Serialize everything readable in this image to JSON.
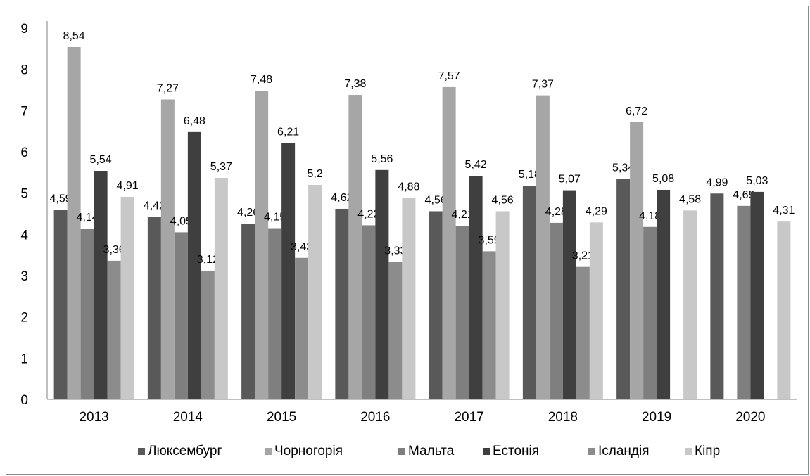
{
  "chart_data": {
    "type": "bar",
    "title": "",
    "xlabel": "",
    "ylabel": "",
    "ylim": [
      0,
      9
    ],
    "yticks": [
      0,
      1,
      2,
      3,
      4,
      5,
      6,
      7,
      8,
      9
    ],
    "grid": false,
    "legend_position": "bottom",
    "categories": [
      "2013",
      "2014",
      "2015",
      "2016",
      "2017",
      "2018",
      "2019",
      "2020"
    ],
    "series": [
      {
        "name": "Люксембург",
        "color": "#595959",
        "values": [
          4.59,
          4.42,
          4.26,
          4.62,
          4.56,
          5.18,
          5.34,
          null
        ],
        "labels": [
          "4,59",
          "4,42",
          "4,26",
          "4,62",
          "4,56",
          "5,18",
          "5,34",
          ""
        ]
      },
      {
        "name": "Чорногорія",
        "color": "#a6a6a6",
        "values": [
          8.54,
          7.27,
          7.48,
          7.38,
          7.57,
          7.37,
          6.72,
          null
        ],
        "labels": [
          "8,54",
          "7,27",
          "7,48",
          "7,38",
          "7,57",
          "7,37",
          "6,72",
          ""
        ]
      },
      {
        "name": "Мальта",
        "color": "#7f7f7f",
        "values": [
          4.14,
          4.05,
          4.15,
          4.22,
          4.21,
          4.28,
          4.18,
          null
        ],
        "labels": [
          "4,14",
          "4,05",
          "4,15",
          "4,22",
          "4,21",
          "4,28",
          "4,18",
          ""
        ]
      },
      {
        "name": "Естонія",
        "color": "#3f3f3f",
        "values": [
          5.54,
          6.48,
          6.21,
          5.56,
          5.42,
          5.07,
          5.08,
          null
        ],
        "labels": [
          "5,54",
          "6,48",
          "6,21",
          "5,56",
          "5,42",
          "5,07",
          "5,08",
          ""
        ]
      },
      {
        "name": "Ісландія",
        "color": "#8c8c8c",
        "values": [
          3.36,
          3.12,
          3.43,
          3.33,
          3.59,
          3.21,
          null,
          null
        ],
        "labels": [
          "3,36",
          "3,12",
          "3,43",
          "3,33",
          "3,59",
          "3,21",
          "",
          ""
        ]
      },
      {
        "name": "Кіпр",
        "color": "#c8c8c8",
        "values": [
          4.91,
          5.37,
          5.2,
          4.88,
          4.56,
          4.29,
          null,
          null
        ],
        "labels": [
          "4,91",
          "5,37",
          "5,2",
          "4,88",
          "4,56",
          "4,29",
          "",
          ""
        ]
      }
    ],
    "extra_bars_2019_2020": [
      {
        "category": "2019",
        "series": "Кіпр",
        "value": 4.58,
        "label": "4,58"
      },
      {
        "category": "2020",
        "series": "Люксембург",
        "value": 4.99,
        "label": "4,99"
      },
      {
        "category": "2020",
        "series": "Мальта",
        "value": 4.69,
        "label": "4,69"
      },
      {
        "category": "2020",
        "series": "Естонія",
        "value": 5.03,
        "label": "5,03"
      },
      {
        "category": "2020",
        "series": "Кіпр",
        "value": 4.31,
        "label": "4,31"
      }
    ]
  }
}
